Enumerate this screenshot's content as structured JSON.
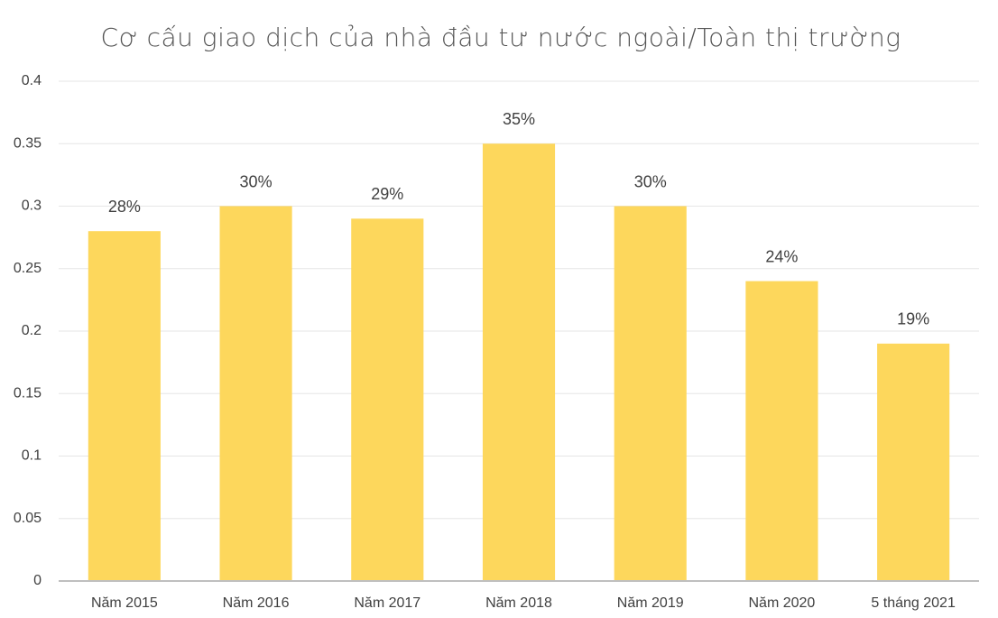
{
  "chart_data": {
    "type": "bar",
    "title": "Cơ cấu giao dịch của nhà đầu tư nước ngoài/Toàn thị trường",
    "categories": [
      "Năm 2015",
      "Năm 2016",
      "Năm 2017",
      "Năm 2018",
      "Năm 2019",
      "Năm 2020",
      "5 tháng 2021"
    ],
    "values": [
      0.28,
      0.3,
      0.29,
      0.35,
      0.3,
      0.24,
      0.19
    ],
    "value_labels": [
      "28%",
      "30%",
      "29%",
      "35%",
      "30%",
      "24%",
      "19%"
    ],
    "color": "#fdd75c",
    "ylim": [
      0,
      0.4
    ],
    "yticks": [
      0,
      0.05,
      0.1,
      0.15,
      0.2,
      0.25,
      0.3,
      0.35,
      0.4
    ],
    "grid": true
  }
}
